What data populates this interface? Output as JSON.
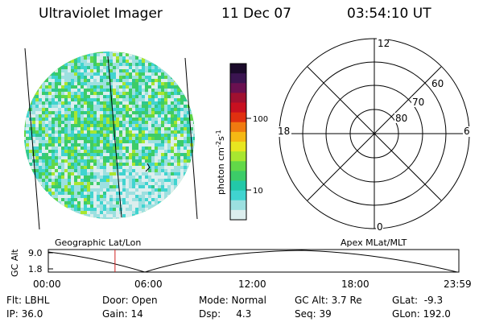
{
  "header": {
    "instrument": "Ultraviolet Imager",
    "date": "11 Dec 07",
    "time": "03:54:10 UT"
  },
  "colorbar": {
    "label": "photon cm-2s-1",
    "ticks": [
      "100",
      "10"
    ],
    "colors": [
      "#1a0a2a",
      "#3a1450",
      "#6a1050",
      "#a01030",
      "#c81020",
      "#e03010",
      "#f07a10",
      "#f5b814",
      "#e8e620",
      "#a8e630",
      "#62d848",
      "#3ccc68",
      "#22c8a8",
      "#40d4d0",
      "#9ce0e0",
      "#dceeee"
    ]
  },
  "polar_plot": {
    "mlt_labels": [
      "12",
      "18",
      "6",
      "0"
    ],
    "lat_labels": [
      "60",
      "70",
      "80"
    ]
  },
  "timeline": {
    "left_label": "Geographic Lat/Lon",
    "right_label": "Apex MLat/MLT",
    "ylabel": "GC Alt",
    "yticks": [
      "9.0",
      "1.8"
    ],
    "xticks": [
      "00:00",
      "06:00",
      "12:00",
      "18:00",
      "23:59"
    ],
    "current_time_marker_hours": 3.9
  },
  "info": {
    "flt": "Flt: LBHL",
    "door": "Door: Open",
    "mode": "Mode: Normal",
    "gc_alt": "GC Alt: 3.7 Re",
    "glat": "GLat:  -9.3",
    "ip": "IP: 36.0",
    "gain": "Gain: 14",
    "dsp": "Dsp:     4.3",
    "seq": "Seq: 39",
    "glon": "GLon: 192.0"
  },
  "colors": {
    "marker": "#d02020",
    "image_base": "#5ad25a"
  }
}
